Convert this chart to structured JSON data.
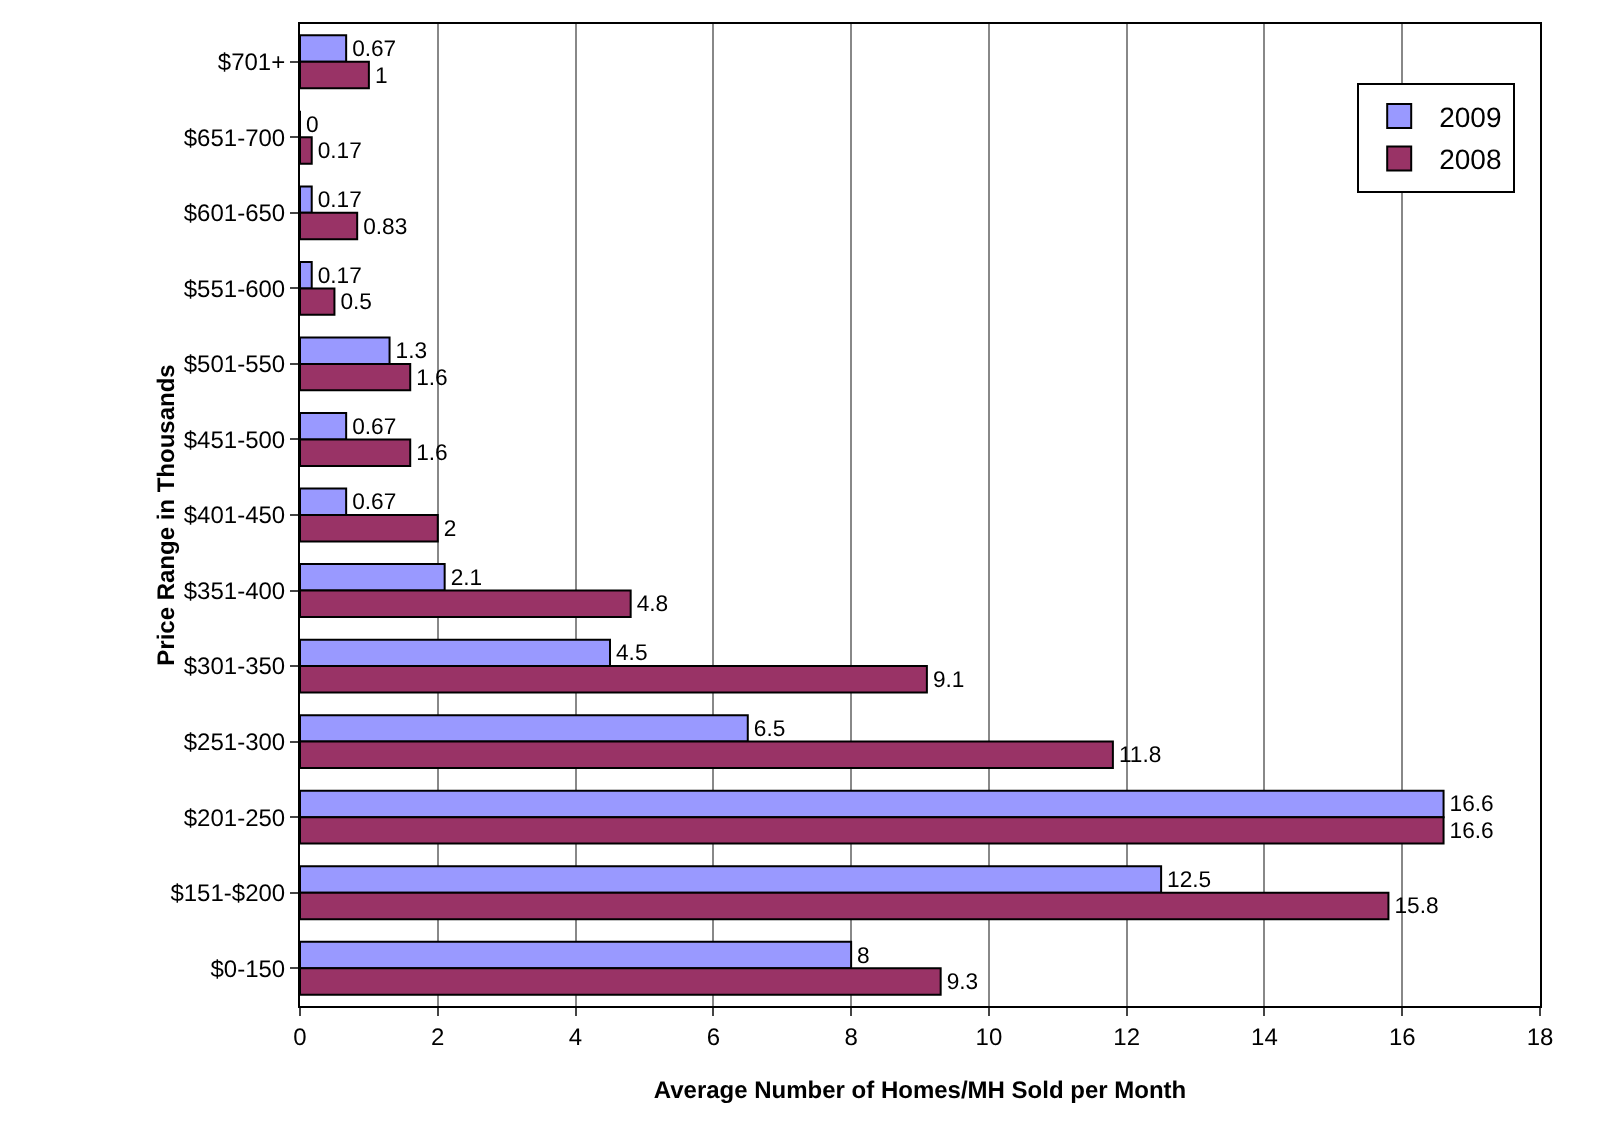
{
  "chart_data": {
    "type": "bar",
    "orientation": "horizontal",
    "xlabel": "Average Number of Homes/MH Sold per Month",
    "ylabel": "Price Range in Thousands",
    "categories": [
      "$701+",
      "$651-700",
      "$601-650",
      "$551-600",
      "$501-550",
      "$451-500",
      "$401-450",
      "$351-400",
      "$301-350",
      "$251-300",
      "$201-250",
      "$151-$200",
      "$0-150"
    ],
    "series": [
      {
        "name": "2009",
        "color": "#9999ff",
        "values": [
          0.67,
          0,
          0.17,
          0.17,
          1.3,
          0.67,
          0.67,
          2.1,
          4.5,
          6.5,
          16.6,
          12.5,
          8
        ]
      },
      {
        "name": "2008",
        "color": "#993366",
        "values": [
          1,
          0.17,
          0.83,
          0.5,
          1.6,
          1.6,
          2,
          4.8,
          9.1,
          11.8,
          16.6,
          15.8,
          9.3
        ]
      }
    ],
    "xlim": [
      0,
      18
    ],
    "xticks": [
      0,
      2,
      4,
      6,
      8,
      10,
      12,
      14,
      16,
      18
    ],
    "grid": "x",
    "legend": "top right",
    "data_labels": true
  }
}
